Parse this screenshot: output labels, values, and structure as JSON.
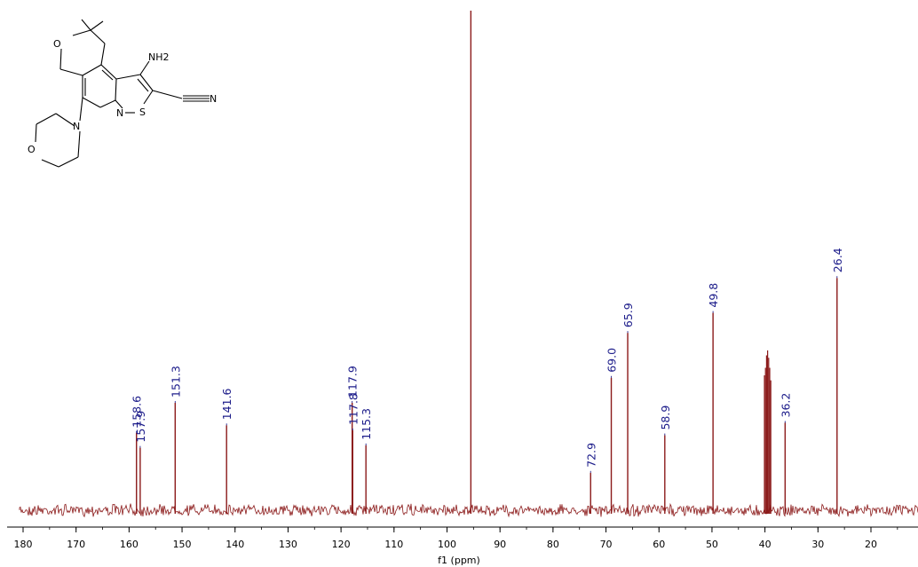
{
  "chart_data": {
    "type": "line",
    "title": "",
    "xlabel": "f1 (ppm)",
    "ylabel": "",
    "xlim": [
      182,
      12
    ],
    "x_reversed": true,
    "x_ticks": [
      180,
      170,
      160,
      150,
      140,
      130,
      120,
      110,
      100,
      90,
      80,
      70,
      60,
      50,
      40,
      30,
      20
    ],
    "grid": false,
    "line_color": "#8b1a1a",
    "label_color": "#1c1c8a",
    "peaks": [
      {
        "ppm": 158.6,
        "label": "158.6",
        "height": 0.155
      },
      {
        "ppm": 157.9,
        "label": "157.9",
        "height": 0.125
      },
      {
        "ppm": 151.3,
        "label": "151.3",
        "height": 0.215
      },
      {
        "ppm": 141.6,
        "label": "141.6",
        "height": 0.17
      },
      {
        "ppm": 117.9,
        "label": "117.9",
        "height": 0.215
      },
      {
        "ppm": 117.8,
        "label": "117.8",
        "height": 0.16
      },
      {
        "ppm": 115.3,
        "label": "115.3",
        "height": 0.13
      },
      {
        "ppm": 95.5,
        "label": "",
        "height": 1.0
      },
      {
        "ppm": 72.9,
        "label": "72.9",
        "height": 0.075
      },
      {
        "ppm": 69.0,
        "label": "69.0",
        "height": 0.265
      },
      {
        "ppm": 65.9,
        "label": "65.9",
        "height": 0.355
      },
      {
        "ppm": 58.9,
        "label": "58.9",
        "height": 0.15
      },
      {
        "ppm": 49.8,
        "label": "49.8",
        "height": 0.395
      },
      {
        "ppm": 36.2,
        "label": "36.2",
        "height": 0.175
      },
      {
        "ppm": 26.4,
        "label": "26.4",
        "height": 0.465
      }
    ],
    "solvent_multiplet": [
      {
        "ppm": 40.1,
        "height": 0.27
      },
      {
        "ppm": 39.9,
        "height": 0.285
      },
      {
        "ppm": 39.7,
        "height": 0.31
      },
      {
        "ppm": 39.5,
        "height": 0.32
      },
      {
        "ppm": 39.3,
        "height": 0.305
      },
      {
        "ppm": 39.1,
        "height": 0.285
      },
      {
        "ppm": 38.9,
        "height": 0.26
      }
    ]
  },
  "structure": {
    "atoms": [
      "O",
      "NH2",
      "N",
      "N",
      "S",
      "N",
      "O"
    ]
  }
}
